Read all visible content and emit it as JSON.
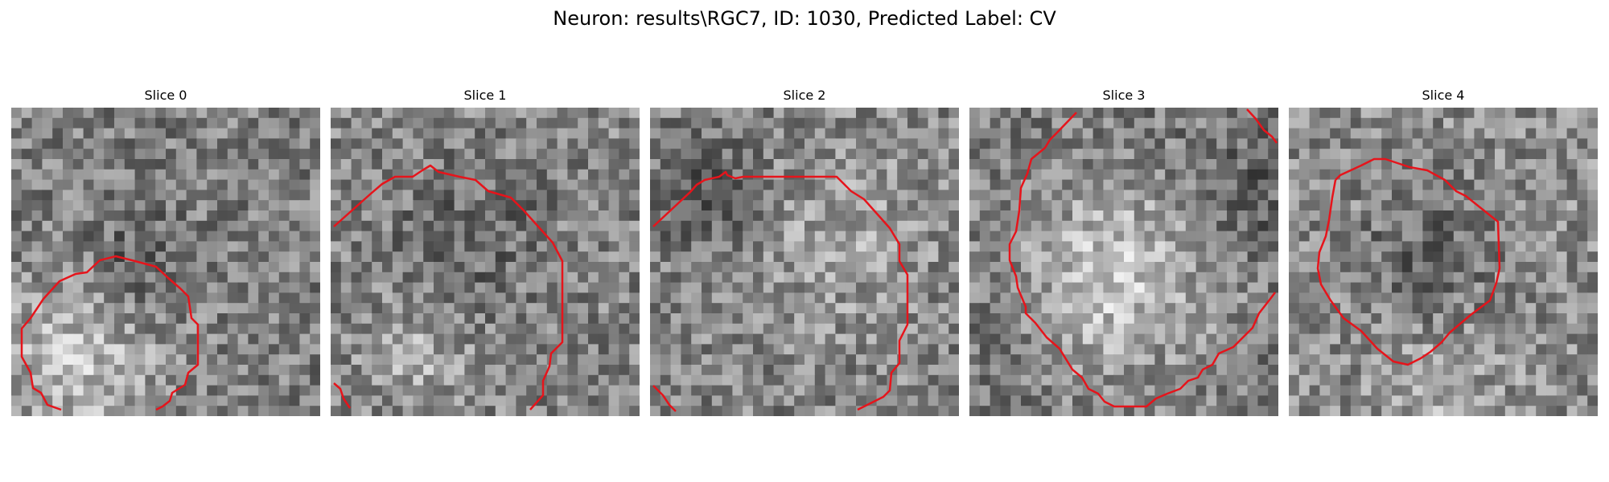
{
  "figure": {
    "title": "Neuron: results\\RGC7, ID: 1030, Predicted Label: CV"
  },
  "colors": {
    "contour": "#e6141b",
    "background": "#ffffff",
    "colormap": "gray"
  },
  "panels": [
    {
      "title": "Slice 0"
    },
    {
      "title": "Slice 1"
    },
    {
      "title": "Slice 2"
    },
    {
      "title": "Slice 3"
    },
    {
      "title": "Slice 4"
    }
  ]
}
